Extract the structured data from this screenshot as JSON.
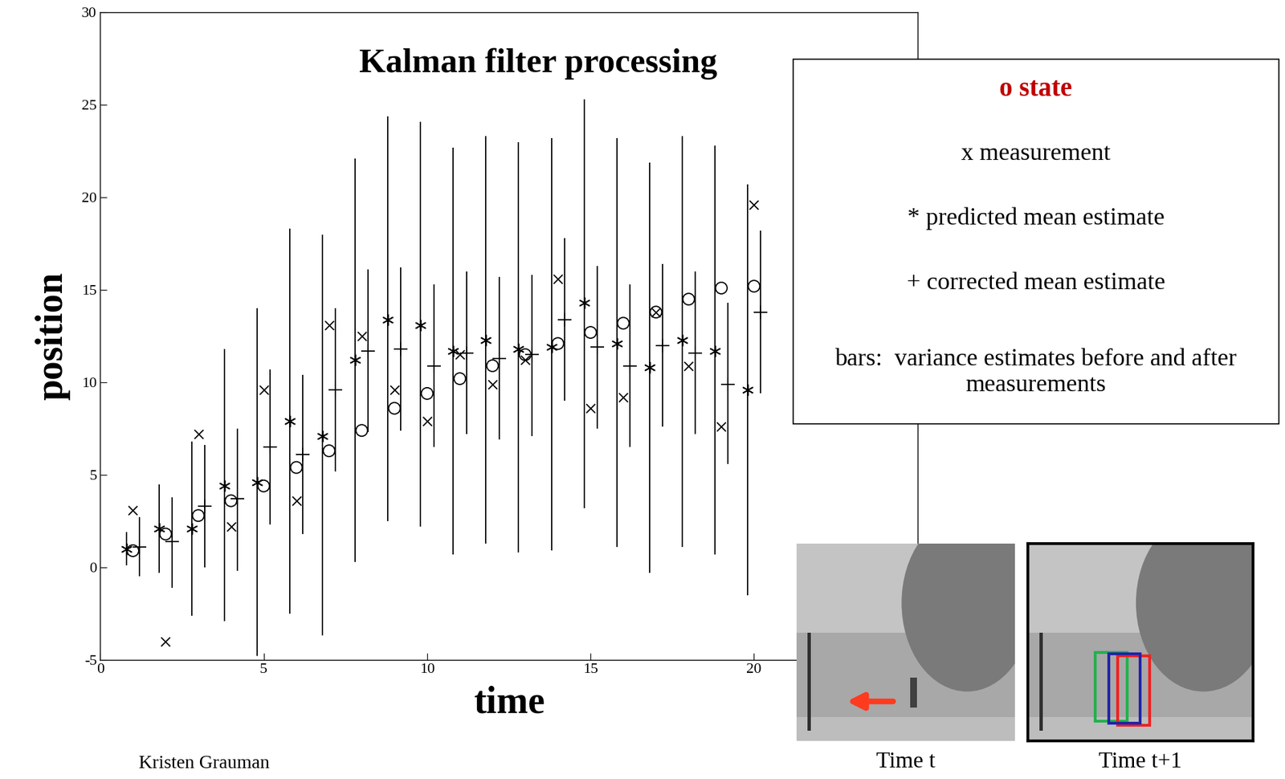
{
  "chart_data": {
    "type": "scatter",
    "title": "Kalman filter processing",
    "x_label": "time",
    "y_label": "position",
    "xlim": [
      0,
      25
    ],
    "ylim": [
      -5,
      30
    ],
    "xticks": [
      0,
      5,
      10,
      15,
      20
    ],
    "yticks": [
      -5,
      0,
      5,
      10,
      15,
      20,
      25,
      30
    ],
    "series": [
      {
        "name": "o state",
        "color": "#000000",
        "marker": "circle",
        "x": [
          1,
          2,
          3,
          4,
          5,
          6,
          7,
          8,
          9,
          10,
          11,
          12,
          13,
          14,
          15,
          16,
          17,
          18,
          19,
          20
        ],
        "values": [
          0.9,
          1.8,
          2.8,
          3.6,
          4.4,
          5.4,
          6.3,
          7.4,
          8.6,
          9.4,
          10.2,
          10.9,
          11.5,
          12.1,
          12.7,
          13.2,
          13.8,
          14.5,
          15.1,
          15.2
        ]
      },
      {
        "name": "x measurement",
        "color": "#000000",
        "marker": "x",
        "x": [
          1,
          2,
          3,
          4,
          5,
          6,
          7,
          8,
          9,
          10,
          11,
          12,
          13,
          14,
          15,
          16,
          17,
          18,
          19,
          20
        ],
        "values": [
          3.1,
          -4.0,
          7.2,
          2.2,
          9.6,
          3.6,
          13.1,
          12.5,
          9.6,
          7.9,
          11.5,
          9.9,
          11.2,
          15.6,
          8.6,
          9.2,
          13.8,
          10.9,
          7.6,
          19.6
        ]
      },
      {
        "name": "* predicted mean estimate",
        "color": "#000000",
        "marker": "asterisk",
        "x": [
          0.8,
          1.8,
          2.8,
          3.8,
          4.8,
          5.8,
          6.8,
          7.8,
          8.8,
          9.8,
          10.8,
          11.8,
          12.8,
          13.8,
          14.8,
          15.8,
          16.8,
          17.8,
          18.8,
          19.8
        ],
        "values": [
          1.0,
          2.1,
          2.1,
          4.4,
          4.6,
          7.9,
          7.1,
          11.2,
          13.4,
          13.1,
          11.7,
          12.3,
          11.8,
          11.9,
          14.3,
          12.1,
          10.8,
          12.3,
          11.7,
          9.6
        ],
        "low": [
          0.1,
          -0.3,
          -2.6,
          -2.9,
          -4.8,
          -2.5,
          -3.7,
          0.3,
          2.5,
          2.2,
          0.7,
          1.3,
          0.8,
          0.9,
          3.2,
          1.1,
          -0.3,
          1.1,
          0.7,
          -1.5
        ],
        "high": [
          1.9,
          4.5,
          6.8,
          11.8,
          14.0,
          18.3,
          18.0,
          22.1,
          24.4,
          24.1,
          22.7,
          23.3,
          23.0,
          23.2,
          25.3,
          23.2,
          21.9,
          23.3,
          22.8,
          20.7
        ]
      },
      {
        "name": "+ corrected mean estimate",
        "color": "#000000",
        "marker": "plus",
        "x": [
          1.2,
          2.2,
          3.2,
          4.2,
          5.2,
          6.2,
          7.2,
          8.2,
          9.2,
          10.2,
          11.2,
          12.2,
          13.2,
          14.2,
          15.2,
          16.2,
          17.2,
          18.2,
          19.2,
          20.2
        ],
        "values": [
          1.1,
          1.4,
          3.3,
          3.7,
          6.5,
          6.1,
          9.6,
          11.7,
          11.8,
          10.9,
          11.6,
          11.3,
          11.5,
          13.4,
          11.9,
          10.9,
          12.0,
          11.6,
          9.9,
          13.8
        ],
        "low": [
          -0.5,
          -1.1,
          0.0,
          -0.2,
          2.3,
          1.8,
          5.2,
          7.3,
          7.4,
          6.5,
          7.2,
          6.9,
          7.1,
          9.0,
          7.5,
          6.5,
          7.6,
          7.2,
          5.6,
          9.4
        ],
        "high": [
          2.7,
          3.8,
          6.6,
          7.5,
          10.7,
          10.4,
          14.0,
          16.1,
          16.2,
          15.3,
          16.0,
          15.7,
          15.8,
          17.8,
          16.3,
          15.3,
          16.4,
          16.0,
          14.3,
          18.2
        ]
      }
    ],
    "annotations": [
      {
        "text": "bars:  variance estimates before and after measurements"
      },
      {
        "text": "Kristen Grauman"
      },
      {
        "text": "Time t"
      },
      {
        "text": "Time t+1"
      }
    ]
  }
}
